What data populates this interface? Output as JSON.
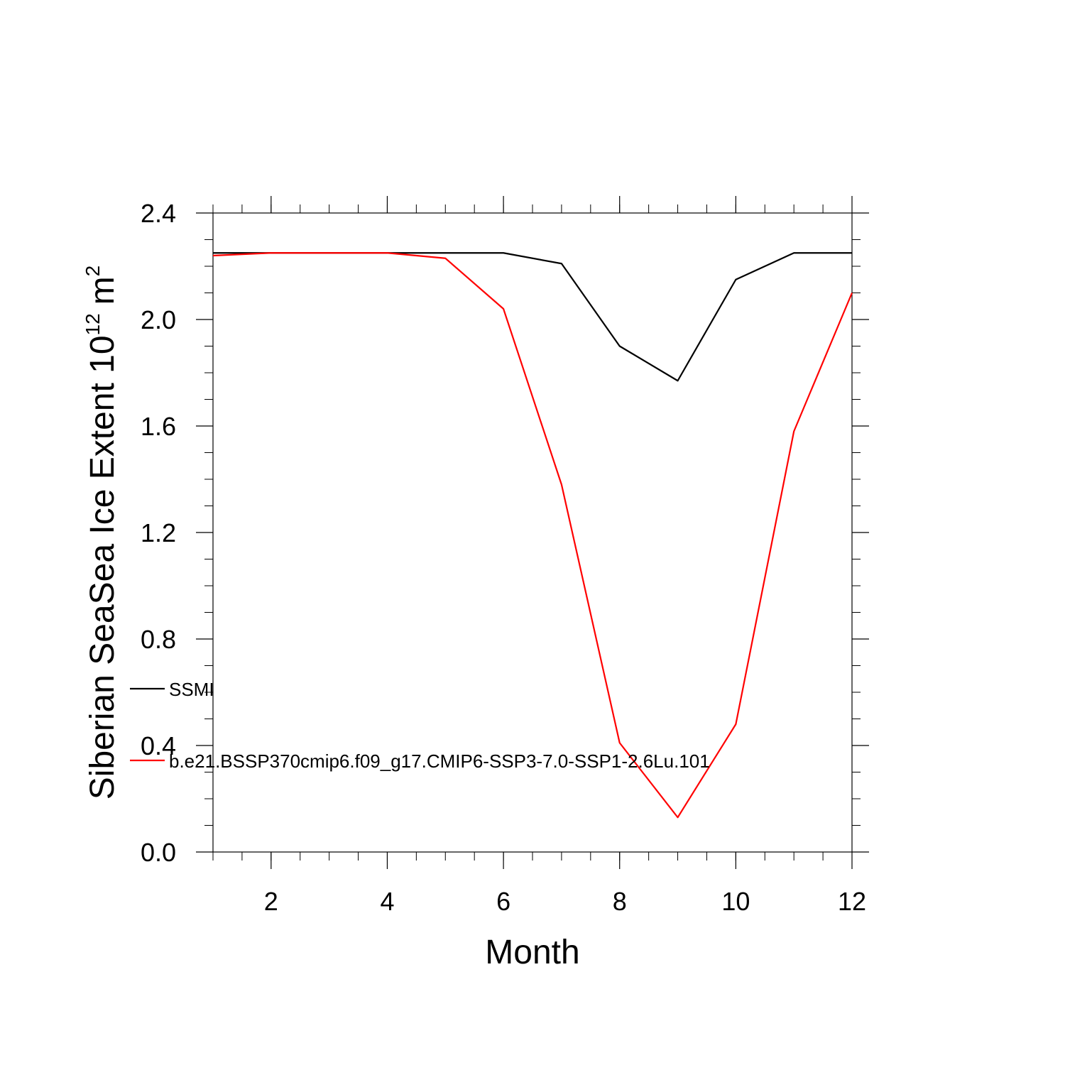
{
  "chart_data": {
    "type": "line",
    "xlabel": "Month",
    "ylabel": "Siberian SeaSea Ice Extent 10",
    "ylabel_sup": "12",
    "ylabel_unit": "m",
    "ylabel_unit_sup": "2",
    "xlim": [
      1,
      12
    ],
    "ylim": [
      0.0,
      2.4
    ],
    "x_ticks": [
      2,
      4,
      6,
      8,
      10,
      12
    ],
    "x_tick_labels": [
      "2",
      "4",
      "6",
      "8",
      "10",
      "12"
    ],
    "y_ticks": [
      0.0,
      0.4,
      0.8,
      1.2,
      1.6,
      2.0,
      2.4
    ],
    "y_tick_labels": [
      "0.0",
      "0.4",
      "0.8",
      "1.2",
      "1.6",
      "2.0",
      "2.4"
    ],
    "grid": false,
    "legend_position": "left-lower",
    "x": [
      1,
      2,
      3,
      4,
      5,
      6,
      7,
      8,
      9,
      10,
      11,
      12
    ],
    "series": [
      {
        "name": "SSMI",
        "color": "#000000",
        "values": [
          2.25,
          2.25,
          2.25,
          2.25,
          2.25,
          2.25,
          2.21,
          1.9,
          1.77,
          2.15,
          2.25,
          2.25
        ]
      },
      {
        "name": "b.e21.BSSP370cmip6.f09_g17.CMIP6-SSP3-7.0-SSP1-2.6Lu.101",
        "color": "#ff0000",
        "values": [
          2.24,
          2.25,
          2.25,
          2.25,
          2.23,
          2.04,
          1.38,
          0.41,
          0.13,
          0.48,
          1.58,
          2.1
        ]
      }
    ]
  }
}
